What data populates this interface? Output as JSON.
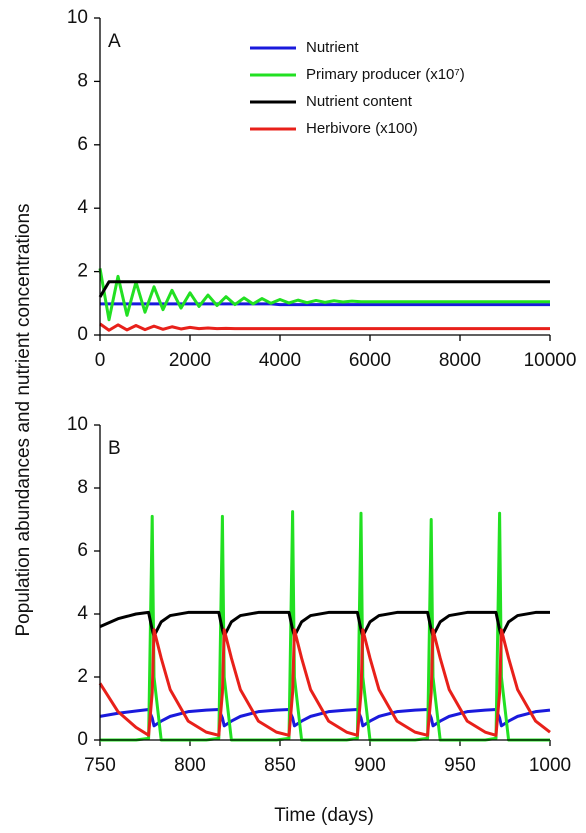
{
  "chart_data": [
    {
      "type": "line",
      "label": "A",
      "ylabel": "Population abundances and nutrient concentrations",
      "legend": true,
      "legend_position": "upper right",
      "x": [
        0,
        200,
        400,
        600,
        800,
        1000,
        1200,
        1400,
        1600,
        1800,
        2000,
        2200,
        2400,
        2600,
        2800,
        3000,
        3200,
        3400,
        3600,
        3800,
        4000,
        4200,
        4400,
        4600,
        4800,
        5000,
        5200,
        5400,
        5600,
        5800,
        6000,
        6200,
        6400,
        6600,
        6800,
        7000,
        7200,
        7400,
        7600,
        7800,
        8000,
        8200,
        8400,
        8600,
        8800,
        9000,
        9200,
        9400,
        9600,
        9800,
        10000
      ],
      "xlim": [
        0,
        10000
      ],
      "xticks": [
        0,
        2000,
        4000,
        6000,
        8000,
        10000
      ],
      "ylim": [
        0,
        10
      ],
      "yticks": [
        0,
        2,
        4,
        6,
        8,
        10
      ],
      "series": [
        {
          "name": "Nutrient",
          "color": "#1a1adc",
          "values": [
            0.98,
            0.98,
            0.98,
            0.98,
            0.98,
            0.98,
            0.98,
            0.98,
            0.98,
            0.98,
            0.98,
            0.98,
            0.98,
            0.98,
            0.98,
            0.98,
            0.98,
            0.98,
            0.98,
            0.98,
            0.96,
            0.96,
            0.96,
            0.96,
            0.96,
            0.96,
            0.96,
            0.96,
            0.96,
            0.96,
            0.96,
            0.96,
            0.96,
            0.96,
            0.96,
            0.96,
            0.96,
            0.96,
            0.96,
            0.96,
            0.96,
            0.96,
            0.96,
            0.96,
            0.96,
            0.96,
            0.96,
            0.96,
            0.96,
            0.96,
            0.96
          ]
        },
        {
          "name": "Primary producer (x10⁷)",
          "color": "#22e022",
          "values": [
            2.1,
            0.48,
            1.85,
            0.62,
            1.67,
            0.72,
            1.52,
            0.8,
            1.41,
            0.85,
            1.33,
            0.9,
            1.26,
            0.93,
            1.21,
            0.96,
            1.17,
            0.98,
            1.15,
            1.0,
            1.12,
            1.01,
            1.1,
            1.02,
            1.09,
            1.03,
            1.08,
            1.04,
            1.07,
            1.05,
            1.05,
            1.05,
            1.05,
            1.05,
            1.05,
            1.05,
            1.05,
            1.05,
            1.05,
            1.05,
            1.05,
            1.05,
            1.05,
            1.05,
            1.05,
            1.05,
            1.05,
            1.05,
            1.05,
            1.05,
            1.05
          ]
        },
        {
          "name": "Nutrient content",
          "color": "#000000",
          "values": [
            1.2,
            1.68,
            1.68,
            1.68,
            1.68,
            1.68,
            1.68,
            1.68,
            1.68,
            1.68,
            1.68,
            1.68,
            1.68,
            1.68,
            1.68,
            1.68,
            1.68,
            1.68,
            1.68,
            1.68,
            1.68,
            1.68,
            1.68,
            1.68,
            1.68,
            1.68,
            1.68,
            1.68,
            1.68,
            1.68,
            1.68,
            1.68,
            1.68,
            1.68,
            1.68,
            1.68,
            1.68,
            1.68,
            1.68,
            1.68,
            1.68,
            1.68,
            1.68,
            1.68,
            1.68,
            1.68,
            1.68,
            1.68,
            1.68,
            1.68,
            1.68
          ]
        },
        {
          "name": "Herbivore (x100)",
          "color": "#e8201a",
          "values": [
            0.35,
            0.15,
            0.32,
            0.16,
            0.3,
            0.17,
            0.28,
            0.18,
            0.26,
            0.19,
            0.24,
            0.2,
            0.22,
            0.2,
            0.21,
            0.2,
            0.2,
            0.2,
            0.2,
            0.2,
            0.2,
            0.2,
            0.2,
            0.2,
            0.2,
            0.2,
            0.2,
            0.2,
            0.2,
            0.2,
            0.2,
            0.2,
            0.2,
            0.2,
            0.2,
            0.2,
            0.2,
            0.2,
            0.2,
            0.2,
            0.2,
            0.2,
            0.2,
            0.2,
            0.2,
            0.2,
            0.2,
            0.2,
            0.2,
            0.2,
            0.2
          ]
        }
      ]
    },
    {
      "type": "line",
      "label": "B",
      "xlabel": "Time (days)",
      "legend": false,
      "x": [
        750,
        760,
        770,
        777,
        779,
        780,
        784,
        789,
        799,
        809,
        816,
        818,
        819,
        823,
        828,
        838,
        848,
        855,
        857,
        858,
        862,
        867,
        877,
        887,
        893,
        895,
        896,
        900,
        905,
        915,
        925,
        932,
        934,
        935,
        939,
        944,
        954,
        964,
        970,
        972,
        973,
        977,
        982,
        992,
        1000
      ],
      "xlim": [
        750,
        1000
      ],
      "xticks": [
        750,
        800,
        850,
        900,
        950,
        1000
      ],
      "ylim": [
        0,
        10
      ],
      "yticks": [
        0,
        2,
        4,
        6,
        8,
        10
      ],
      "series": [
        {
          "name": "Nutrient",
          "color": "#1a1adc",
          "values": [
            0.75,
            0.85,
            0.92,
            0.97,
            0.7,
            0.45,
            0.6,
            0.75,
            0.9,
            0.95,
            0.97,
            0.7,
            0.45,
            0.6,
            0.75,
            0.9,
            0.95,
            0.97,
            0.7,
            0.45,
            0.6,
            0.75,
            0.9,
            0.95,
            0.97,
            0.7,
            0.45,
            0.6,
            0.75,
            0.9,
            0.95,
            0.97,
            0.7,
            0.45,
            0.6,
            0.75,
            0.9,
            0.95,
            0.97,
            0.7,
            0.45,
            0.6,
            0.75,
            0.9,
            0.95
          ]
        },
        {
          "name": "Primary producer (x10⁷)",
          "color": "#22e022",
          "values": [
            0,
            0,
            0,
            0.05,
            7.1,
            2.0,
            0,
            0,
            0,
            0,
            0.05,
            7.1,
            2.0,
            0,
            0,
            0,
            0,
            0.05,
            7.25,
            2.0,
            0,
            0,
            0,
            0,
            0.05,
            7.2,
            2.0,
            0,
            0,
            0,
            0,
            0.05,
            7.0,
            2.0,
            0,
            0,
            0,
            0,
            0.05,
            7.2,
            2.0,
            0,
            0,
            0,
            0
          ]
        },
        {
          "name": "Nutrient content",
          "color": "#000000",
          "values": [
            3.6,
            3.85,
            4.0,
            4.05,
            3.5,
            3.3,
            3.75,
            3.95,
            4.05,
            4.05,
            4.05,
            3.5,
            3.3,
            3.75,
            3.95,
            4.05,
            4.05,
            4.05,
            3.5,
            3.3,
            3.75,
            3.95,
            4.05,
            4.05,
            4.05,
            3.5,
            3.3,
            3.75,
            3.95,
            4.05,
            4.05,
            4.05,
            3.5,
            3.3,
            3.75,
            3.95,
            4.05,
            4.05,
            4.05,
            3.5,
            3.3,
            3.75,
            3.95,
            4.05,
            4.05
          ]
        },
        {
          "name": "Herbivore (x100)",
          "color": "#e8201a",
          "values": [
            1.8,
            0.9,
            0.4,
            0.15,
            1.5,
            3.5,
            2.6,
            1.6,
            0.6,
            0.25,
            0.15,
            1.5,
            3.5,
            2.6,
            1.6,
            0.6,
            0.25,
            0.15,
            1.5,
            3.5,
            2.6,
            1.6,
            0.6,
            0.25,
            0.15,
            1.5,
            3.5,
            2.6,
            1.6,
            0.6,
            0.25,
            0.15,
            1.5,
            3.5,
            2.6,
            1.6,
            0.6,
            0.25,
            0.15,
            1.5,
            3.5,
            2.6,
            1.6,
            0.6,
            0.25
          ]
        }
      ]
    }
  ]
}
